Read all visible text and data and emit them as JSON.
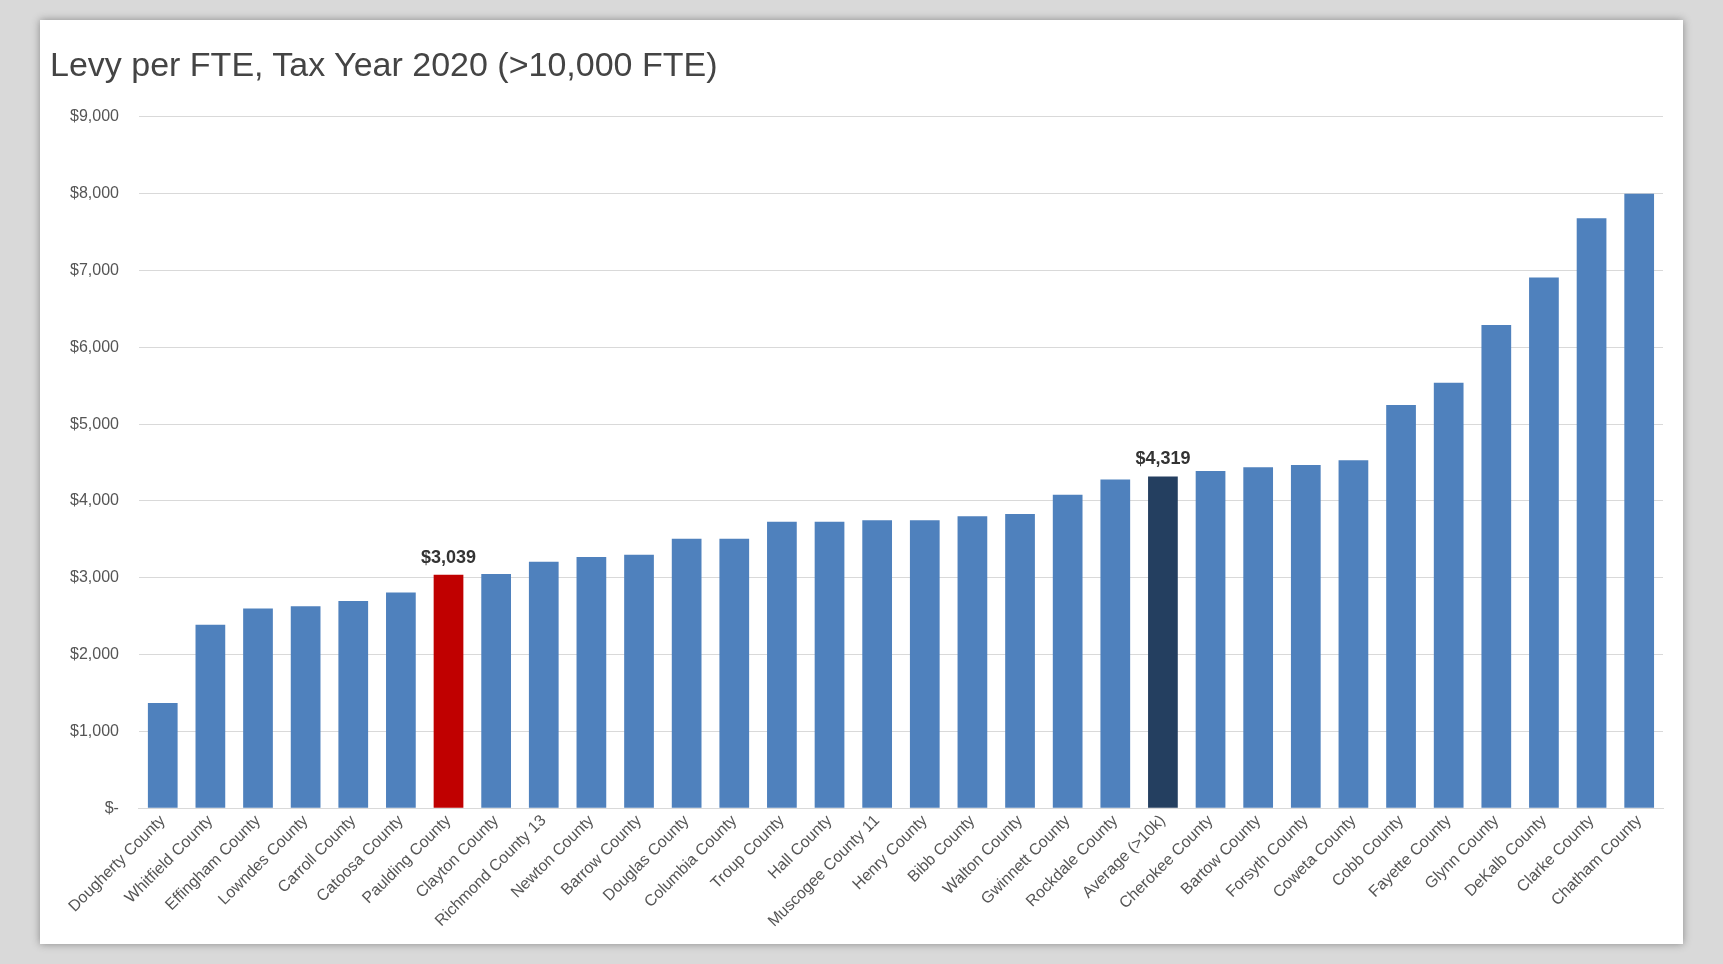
{
  "chart_data": {
    "type": "bar",
    "title": "Levy per FTE, Tax Year 2020 (>10,000 FTE)",
    "categories": [
      "Dougherty County",
      "Whitfield County",
      "Effingham County",
      "Lowndes County",
      "Carroll County",
      "Catoosa County",
      "Paulding County",
      "Clayton County",
      "Richmond County 13",
      "Newton County",
      "Barrow County",
      "Douglas County",
      "Columbia County",
      "Troup County",
      "Hall County",
      "Muscogee County 11",
      "Henry County",
      "Bibb County",
      "Walton County",
      "Gwinnett County",
      "Rockdale County",
      "Average (>10k)",
      "Cherokee County",
      "Bartow County",
      "Forsyth County",
      "Coweta County",
      "Cobb County",
      "Fayette County",
      "Glynn County",
      "DeKalb County",
      "Clarke County",
      "Chatham County"
    ],
    "values": [
      1370,
      2390,
      2600,
      2630,
      2700,
      2810,
      3039,
      3050,
      3210,
      3270,
      3300,
      3510,
      3510,
      3730,
      3730,
      3750,
      3750,
      3800,
      3830,
      4080,
      4280,
      4319,
      4390,
      4440,
      4470,
      4530,
      5250,
      5540,
      6290,
      6910,
      7680,
      8000
    ],
    "colors": [
      "#4f81bd",
      "#4f81bd",
      "#4f81bd",
      "#4f81bd",
      "#4f81bd",
      "#4f81bd",
      "#c00000",
      "#4f81bd",
      "#4f81bd",
      "#4f81bd",
      "#4f81bd",
      "#4f81bd",
      "#4f81bd",
      "#4f81bd",
      "#4f81bd",
      "#4f81bd",
      "#4f81bd",
      "#4f81bd",
      "#4f81bd",
      "#4f81bd",
      "#4f81bd",
      "#243f60",
      "#4f81bd",
      "#4f81bd",
      "#4f81bd",
      "#4f81bd",
      "#4f81bd",
      "#4f81bd",
      "#4f81bd",
      "#4f81bd",
      "#4f81bd",
      "#4f81bd"
    ],
    "value_labels": [
      null,
      null,
      null,
      null,
      null,
      null,
      "$3,039",
      null,
      null,
      null,
      null,
      null,
      null,
      null,
      null,
      null,
      null,
      null,
      null,
      null,
      null,
      "$4,319",
      null,
      null,
      null,
      null,
      null,
      null,
      null,
      null,
      null,
      null
    ],
    "ylim": [
      0,
      9000
    ],
    "yticks": [
      {
        "value": 0,
        "label": "$-"
      },
      {
        "value": 1000,
        "label": "$1,000"
      },
      {
        "value": 2000,
        "label": "$2,000"
      },
      {
        "value": 3000,
        "label": "$3,000"
      },
      {
        "value": 4000,
        "label": "$4,000"
      },
      {
        "value": 5000,
        "label": "$5,000"
      },
      {
        "value": 6000,
        "label": "$6,000"
      },
      {
        "value": 7000,
        "label": "$7,000"
      },
      {
        "value": 8000,
        "label": "$8,000"
      },
      {
        "value": 9000,
        "label": "$9,000"
      }
    ],
    "grid": "y",
    "legend": false
  }
}
